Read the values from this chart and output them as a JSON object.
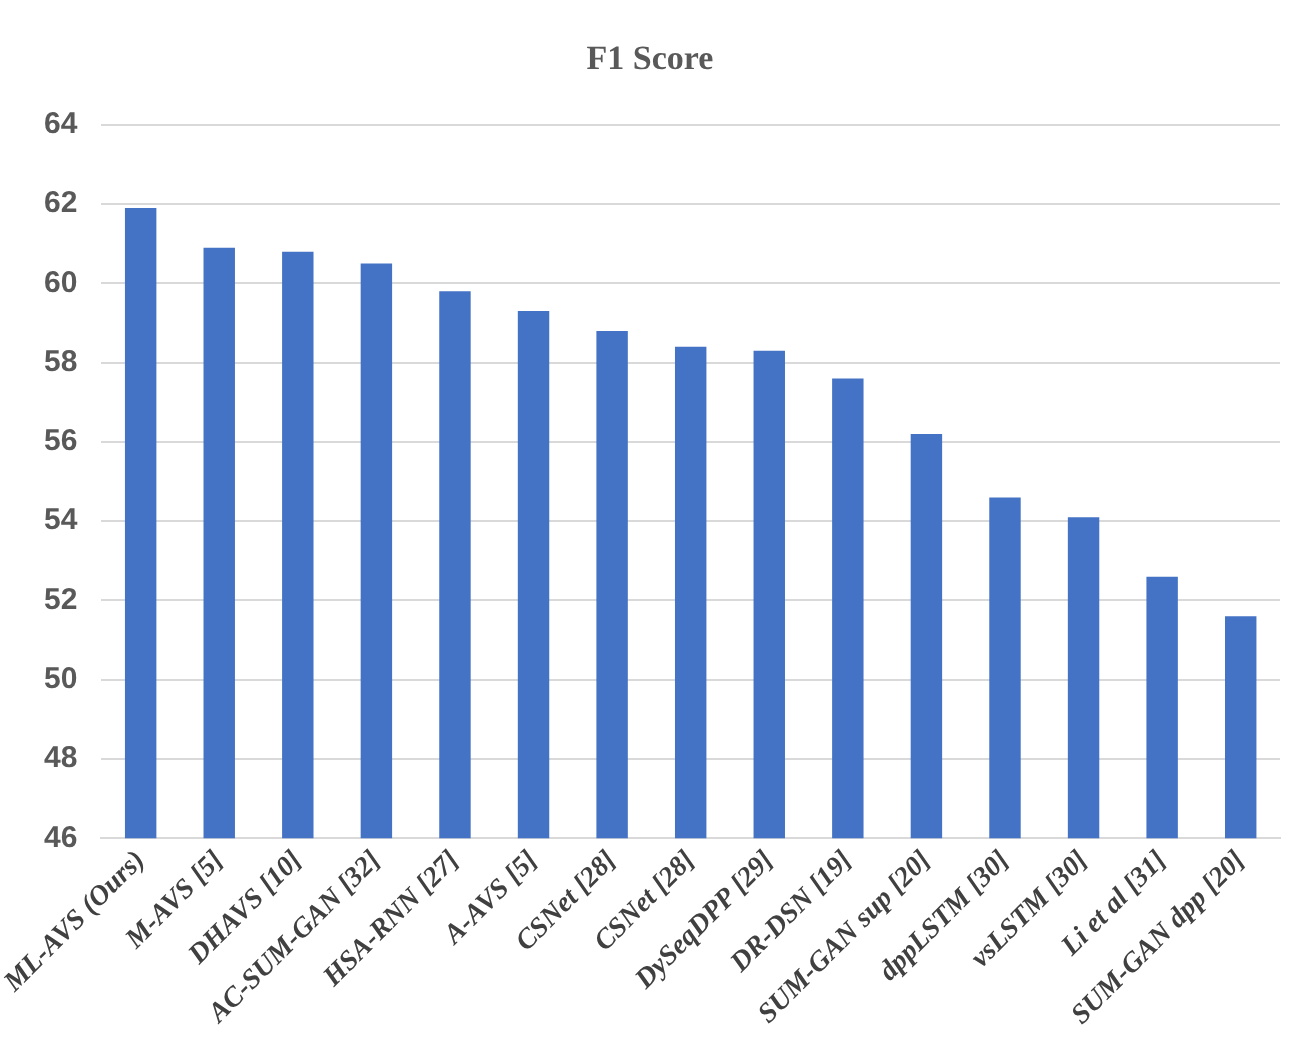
{
  "chart_data": {
    "type": "bar",
    "title": "F1 Score",
    "categories": [
      "ML-AVS (Ours)",
      "M-AVS [5]",
      "DHAVS [10]",
      "AC-SUM-GAN [32]",
      "HSA-RNN [27]",
      "A-AVS [5]",
      "CSNet [28]",
      "CSNet [28]",
      "DySeqDPP [29]",
      "DR-DSN [19]",
      "SUM-GAN sup [20]",
      "dppLSTM [30]",
      "vsLSTM [30]",
      "Li et al [31]",
      "SUM-GAN dpp [20]"
    ],
    "values": [
      61.9,
      60.9,
      60.8,
      60.5,
      59.8,
      59.3,
      58.8,
      58.4,
      58.3,
      57.6,
      56.2,
      54.6,
      54.1,
      52.6,
      51.6
    ],
    "color": "#4472c4",
    "ylim": [
      46,
      64
    ],
    "yticks": [
      46,
      48,
      50,
      52,
      54,
      56,
      58,
      60,
      62,
      64
    ],
    "grid": "y"
  }
}
